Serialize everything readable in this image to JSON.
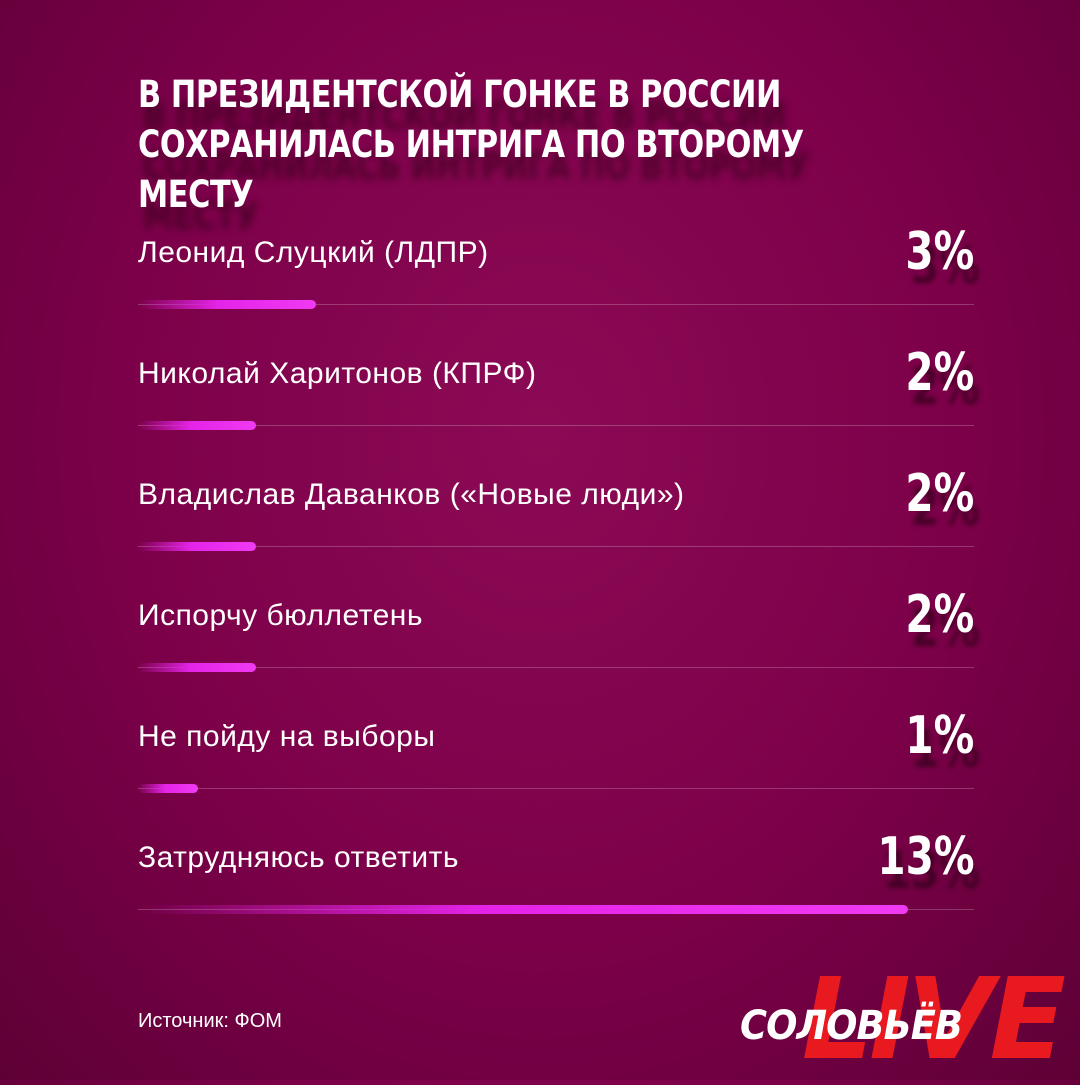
{
  "title": "В президентской гонке в России сохранилась интрига по второму месту",
  "chart_data": {
    "type": "bar",
    "categories": [
      "Леонид Слуцкий (ЛДПР)",
      "Николай Харитонов (КПРФ)",
      "Владислав Даванков («Новые люди»)",
      "Испорчу бюллетень",
      "Не пойду на выборы",
      "Затрудняюсь ответить"
    ],
    "values": [
      3,
      2,
      2,
      2,
      1,
      13
    ],
    "value_labels": [
      "3%",
      "2%",
      "2%",
      "2%",
      "1%",
      "13%"
    ],
    "unit": "%",
    "bar_color": "#e423e8"
  },
  "source": "Источник: ФОМ",
  "logo": {
    "brand": "СОЛОВЬЁВ",
    "live": "LIVE"
  },
  "colors": {
    "background": "#7c0049",
    "bar": "#e423e8",
    "live": "#e8191f"
  }
}
